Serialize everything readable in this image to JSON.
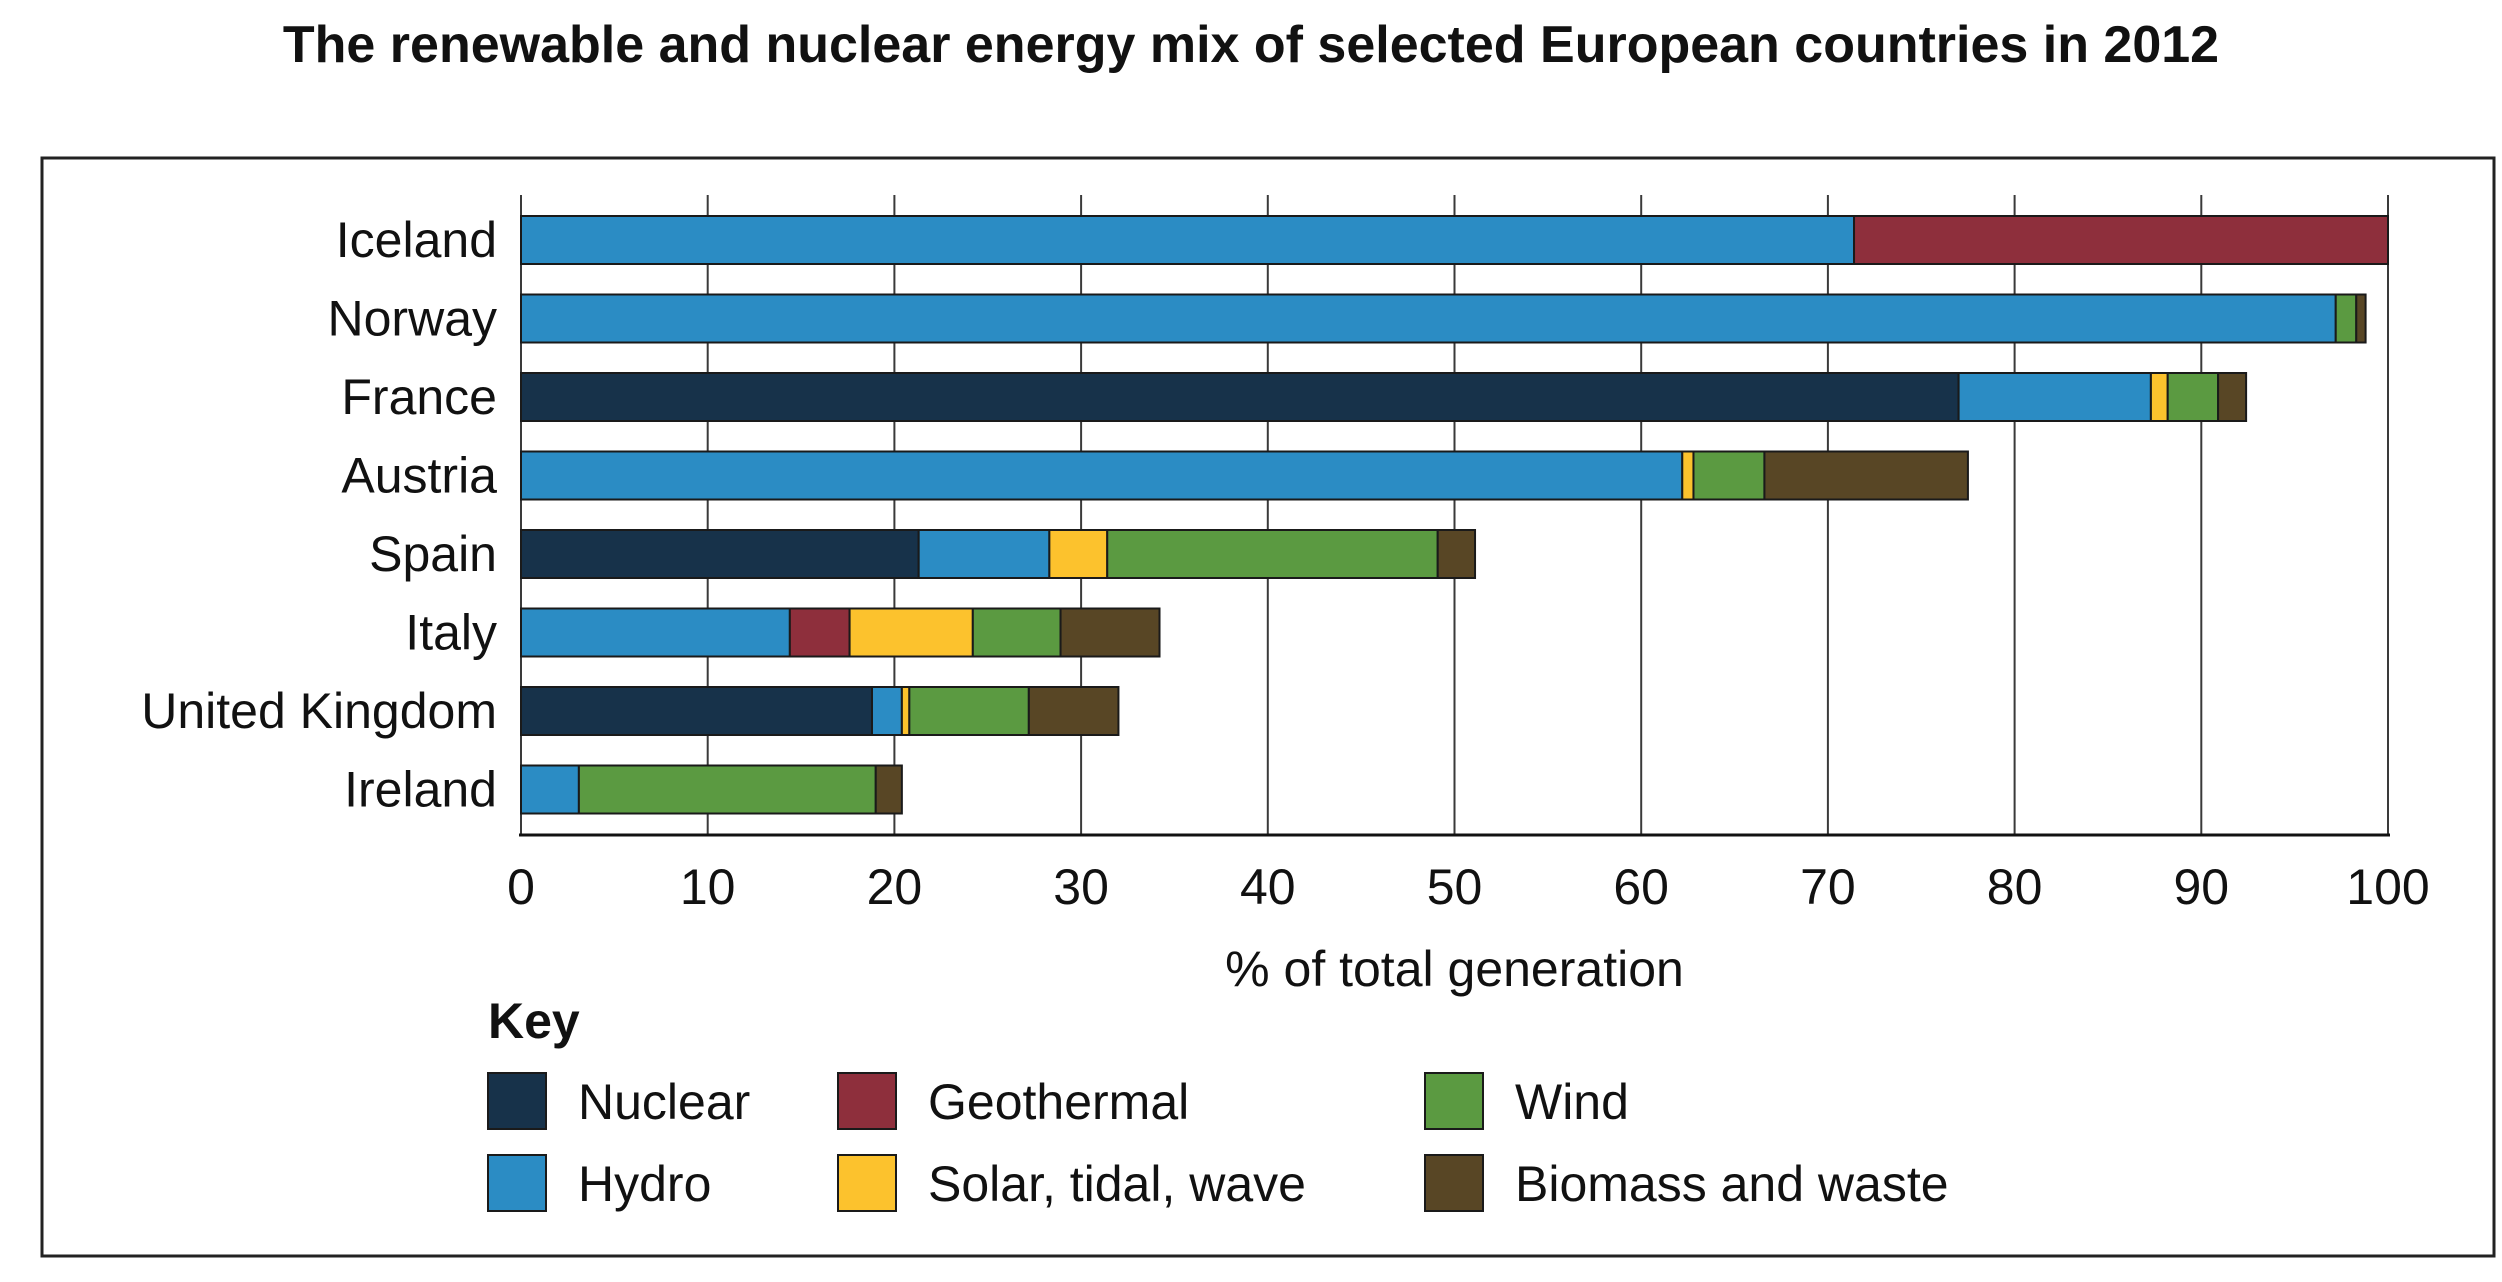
{
  "chart_data": {
    "type": "bar",
    "orientation": "horizontal",
    "stacked": true,
    "title": "The renewable and nuclear energy mix of selected European countries in 2012",
    "xlabel": "% of total generation",
    "ylabel": "",
    "xlim": [
      0,
      100
    ],
    "xticks": [
      "0",
      "10",
      "20",
      "30",
      "40",
      "50",
      "60",
      "70",
      "80",
      "90",
      "100"
    ],
    "grid": "vertical",
    "categories": [
      "Iceland",
      "Norway",
      "France",
      "Austria",
      "Spain",
      "Italy",
      "United Kingdom",
      "Ireland"
    ],
    "series": [
      {
        "name": "Nuclear",
        "color": "#17324a",
        "values": [
          0,
          0,
          77.0,
          0,
          21.3,
          0,
          18.8,
          0
        ]
      },
      {
        "name": "Hydro",
        "color": "#2b8cc4",
        "values": [
          71.4,
          97.2,
          10.3,
          62.2,
          7.0,
          14.4,
          1.6,
          3.1
        ]
      },
      {
        "name": "Geothermal",
        "color": "#8e2f3c",
        "values": [
          28.6,
          0,
          0,
          0,
          0,
          3.2,
          0,
          0
        ]
      },
      {
        "name": "Solar, tidal, wave",
        "color": "#fcc22d",
        "values": [
          0,
          0,
          0.9,
          0.6,
          3.1,
          6.6,
          0.4,
          0
        ]
      },
      {
        "name": "Wind",
        "color": "#5b9a41",
        "values": [
          0,
          1.1,
          2.7,
          3.8,
          17.7,
          4.7,
          6.4,
          15.9
        ]
      },
      {
        "name": "Biomass and waste",
        "color": "#584625",
        "values": [
          0,
          0.5,
          1.5,
          10.9,
          2.0,
          5.3,
          4.8,
          1.4
        ]
      }
    ],
    "legend_title": "Key",
    "legend_position": "bottom"
  }
}
